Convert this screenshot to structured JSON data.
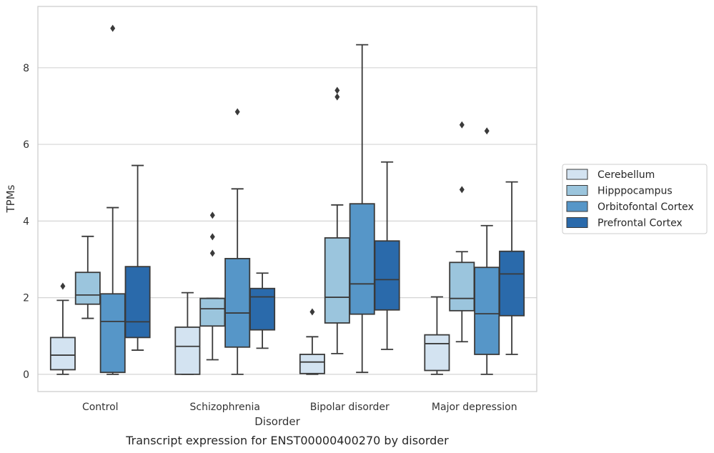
{
  "chart_data": {
    "type": "box",
    "caption": "Transcript expression for ENST00000400270 by disorder",
    "xlabel": "Disorder",
    "ylabel": "TPMs",
    "ylim": [
      -0.45,
      9.6
    ],
    "yticks": [
      0,
      2,
      4,
      6,
      8
    ],
    "grid": "horizontal",
    "legend_position": "right",
    "categories": [
      "Control",
      "Schizophrenia",
      "Bipolar disorder",
      "Major depression"
    ],
    "series": [
      {
        "name": "Cerebellum",
        "color": "#d3e3f1",
        "boxes": [
          {
            "whislo": 0.0,
            "q1": 0.12,
            "med": 0.5,
            "q3": 0.96,
            "whishi": 1.93,
            "fliers": [
              2.3
            ]
          },
          {
            "whislo": 0.0,
            "q1": 0.0,
            "med": 0.73,
            "q3": 1.23,
            "whishi": 2.13,
            "fliers": []
          },
          {
            "whislo": 0.0,
            "q1": 0.02,
            "med": 0.32,
            "q3": 0.52,
            "whishi": 0.98,
            "fliers": [
              1.63
            ]
          },
          {
            "whislo": 0.0,
            "q1": 0.1,
            "med": 0.8,
            "q3": 1.03,
            "whishi": 2.02,
            "fliers": []
          }
        ]
      },
      {
        "name": "Hipppocampus",
        "color": "#9bc5dd",
        "boxes": [
          {
            "whislo": 1.46,
            "q1": 1.83,
            "med": 2.07,
            "q3": 2.66,
            "whishi": 3.6,
            "fliers": []
          },
          {
            "whislo": 0.38,
            "q1": 1.26,
            "med": 1.71,
            "q3": 1.98,
            "whishi": 1.98,
            "fliers": [
              3.16,
              3.59,
              4.15
            ]
          },
          {
            "whislo": 0.54,
            "q1": 1.34,
            "med": 2.01,
            "q3": 3.56,
            "whishi": 4.42,
            "fliers": [
              7.24,
              7.41
            ]
          },
          {
            "whislo": 0.85,
            "q1": 1.66,
            "med": 1.98,
            "q3": 2.92,
            "whishi": 3.2,
            "fliers": [
              4.82,
              6.51
            ]
          }
        ]
      },
      {
        "name": "Orbitofontal Cortex",
        "color": "#5696c8",
        "boxes": [
          {
            "whislo": 0.0,
            "q1": 0.05,
            "med": 1.38,
            "q3": 2.1,
            "whishi": 4.35,
            "fliers": [
              9.03
            ]
          },
          {
            "whislo": 0.0,
            "q1": 0.71,
            "med": 1.6,
            "q3": 3.02,
            "whishi": 4.84,
            "fliers": [
              6.85
            ]
          },
          {
            "whislo": 0.05,
            "q1": 1.57,
            "med": 2.36,
            "q3": 4.45,
            "whishi": 8.6,
            "fliers": []
          },
          {
            "whislo": 0.0,
            "q1": 0.52,
            "med": 1.58,
            "q3": 2.79,
            "whishi": 3.88,
            "fliers": [
              6.35
            ]
          }
        ]
      },
      {
        "name": "Prefrontal Cortex",
        "color": "#2a6aab",
        "boxes": [
          {
            "whislo": 0.63,
            "q1": 0.96,
            "med": 1.37,
            "q3": 2.81,
            "whishi": 5.45,
            "fliers": []
          },
          {
            "whislo": 0.68,
            "q1": 1.16,
            "med": 2.02,
            "q3": 2.24,
            "whishi": 2.64,
            "fliers": []
          },
          {
            "whislo": 0.65,
            "q1": 1.68,
            "med": 2.47,
            "q3": 3.48,
            "whishi": 5.54,
            "fliers": []
          },
          {
            "whislo": 0.52,
            "q1": 1.53,
            "med": 2.62,
            "q3": 3.21,
            "whishi": 5.02,
            "fliers": []
          }
        ]
      }
    ]
  }
}
